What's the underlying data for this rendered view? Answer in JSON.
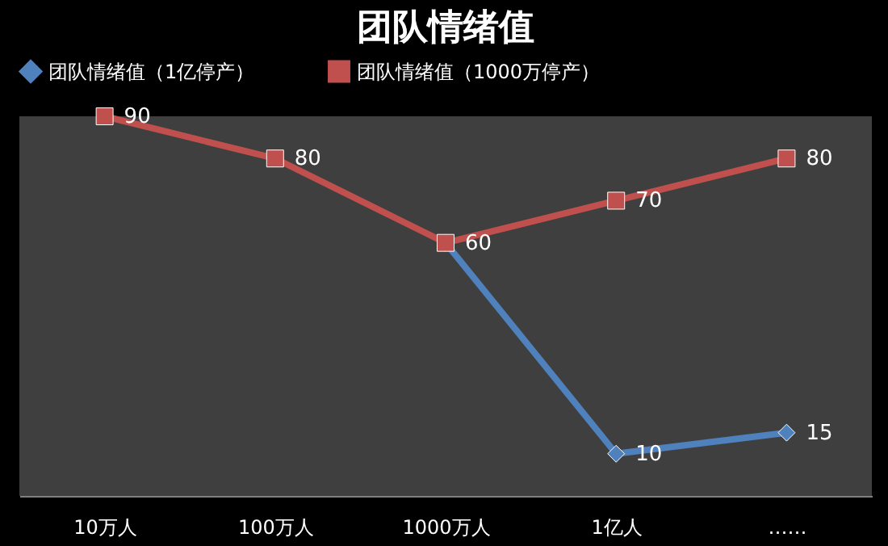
{
  "chart_data": {
    "type": "line",
    "title": "团队情绪值",
    "categories": [
      "10万人",
      "100万人",
      "1000万人",
      "1亿人",
      "……"
    ],
    "series": [
      {
        "name": "团队情绪值（1亿停产）",
        "color": "#4f81bd",
        "marker": "diamond",
        "values": [
          null,
          null,
          60,
          10,
          15
        ],
        "value_labels": [
          null,
          null,
          null,
          "10",
          "15"
        ]
      },
      {
        "name": "团队情绪值（1000万停产）",
        "color": "#c0504d",
        "marker": "square",
        "values": [
          90,
          80,
          60,
          70,
          80
        ],
        "value_labels": [
          "90",
          "80",
          "60",
          "70",
          "80"
        ]
      }
    ],
    "legend": "top",
    "tick_labels": "x",
    "grid": false
  }
}
